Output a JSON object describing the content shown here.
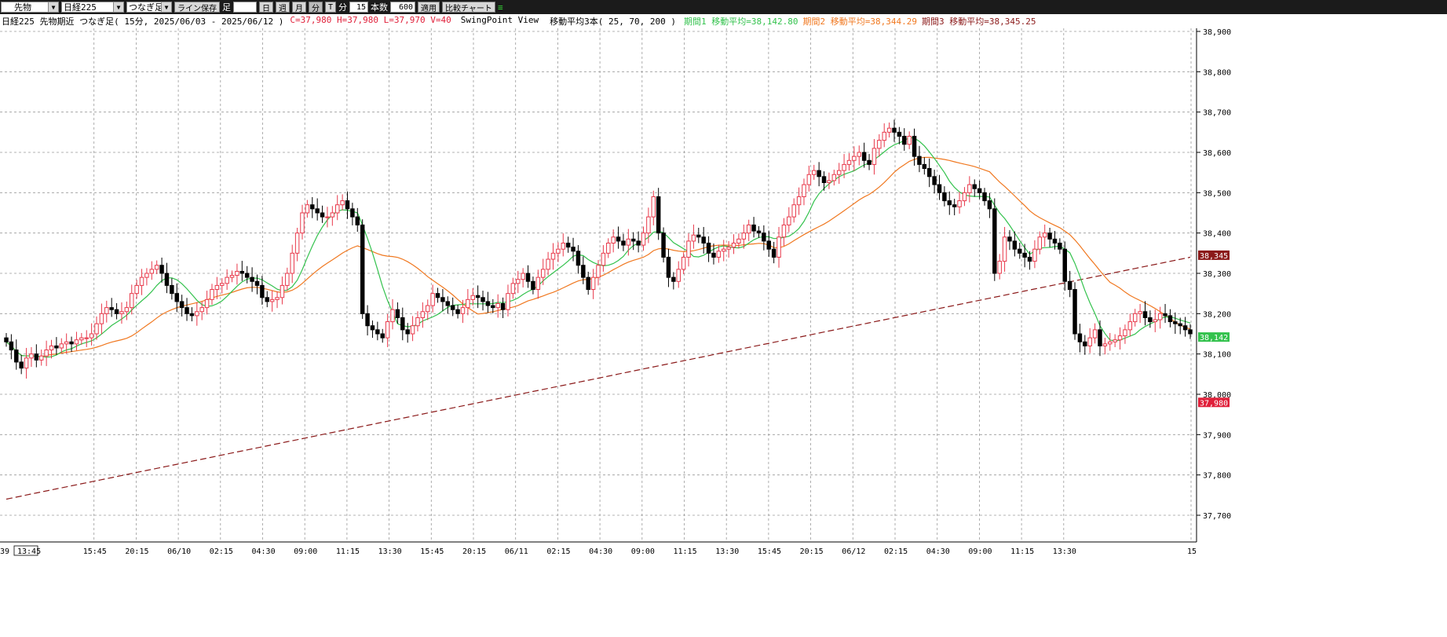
{
  "toolbar": {
    "market_select": "先物",
    "symbol_select": "日経225",
    "series_select": "つなぎ足",
    "save_line_button": "ライン保存",
    "foot_label": "足",
    "foot_value": "",
    "day_button": "日",
    "week_button": "週",
    "month_button": "月",
    "minute_button": "分",
    "tick_button": "T",
    "minute_label": "分",
    "interval_value": "15",
    "count_label": "本数",
    "count_value": "600",
    "apply_button": "適用",
    "compare_button": "比較チャート"
  },
  "info": {
    "title": "日経225 先物期近 つなぎ足( 15分, 2025/06/03 - 2025/06/12 )",
    "ohlc": "C=37,980 H=37,980 L=37,970 V=40",
    "view": "SwingPoint View",
    "ma_label": "移動平均3本( 25, 70, 200 )",
    "ma1": "期間1 移動平均=38,142.80",
    "ma2": "期間2 移動平均=38,344.29",
    "ma3": "期間3 移動平均=38,345.25"
  },
  "colors": {
    "up": "#e8384a",
    "down": "#000000",
    "ma1": "#33c24d",
    "ma2": "#f07820",
    "ma3": "#8b1a1a",
    "label": "#e0203a",
    "grid": "#9a9a9a"
  },
  "chart_data": {
    "type": "candlestick",
    "y_range": [
      37650,
      38950
    ],
    "y_ticks": [
      "38,900",
      "38,800",
      "38,700",
      "38,600",
      "38,500",
      "38,400",
      "38,300",
      "38,200",
      "38,100",
      "38,000",
      "37,900",
      "37,800",
      "37,700"
    ],
    "x_ticks": [
      "13:45",
      "15:45",
      "20:15",
      "06/10",
      "02:15",
      "04:30",
      "09:00",
      "11:15",
      "13:30",
      "15:45",
      "20:15",
      "06/11",
      "02:15",
      "04:30",
      "09:00",
      "11:15",
      "13:30",
      "15:45",
      "20:15",
      "06/12",
      "02:15",
      "04:30",
      "09:00",
      "11:15",
      "13:30",
      "15"
    ],
    "x_left_partial": "39",
    "price_tags": [
      {
        "text": "38,345.",
        "value": 38345,
        "color": "#8b1a1a"
      },
      {
        "text": "38,142.",
        "value": 38142,
        "color": "#33c24d"
      },
      {
        "text": "37,980",
        "value": 37980,
        "color": "#e0203a"
      }
    ],
    "closes": [
      38130,
      38110,
      38080,
      38065,
      38090,
      38100,
      38085,
      38095,
      38110,
      38120,
      38115,
      38125,
      38130,
      38125,
      38135,
      38140,
      38140,
      38150,
      38175,
      38200,
      38215,
      38210,
      38200,
      38205,
      38215,
      38250,
      38270,
      38290,
      38300,
      38310,
      38320,
      38300,
      38270,
      38250,
      38230,
      38215,
      38200,
      38195,
      38205,
      38215,
      38235,
      38260,
      38270,
      38275,
      38290,
      38295,
      38305,
      38300,
      38290,
      38280,
      38270,
      38240,
      38230,
      38235,
      38240,
      38270,
      38300,
      38350,
      38400,
      38450,
      38470,
      38460,
      38450,
      38440,
      38440,
      38450,
      38470,
      38480,
      38460,
      38440,
      38420,
      38200,
      38170,
      38160,
      38150,
      38140,
      38180,
      38210,
      38190,
      38160,
      38150,
      38170,
      38190,
      38205,
      38220,
      38250,
      38240,
      38230,
      38220,
      38210,
      38200,
      38215,
      38235,
      38245,
      38240,
      38230,
      38220,
      38215,
      38225,
      38210,
      38250,
      38275,
      38285,
      38300,
      38280,
      38260,
      38290,
      38310,
      38335,
      38350,
      38360,
      38375,
      38365,
      38355,
      38320,
      38290,
      38260,
      38290,
      38320,
      38350,
      38375,
      38390,
      38380,
      38370,
      38385,
      38380,
      38370,
      38400,
      38440,
      38490,
      38400,
      38340,
      38290,
      38280,
      38310,
      38340,
      38380,
      38395,
      38390,
      38375,
      38350,
      38340,
      38355,
      38360,
      38365,
      38375,
      38385,
      38400,
      38420,
      38405,
      38400,
      38380,
      38360,
      38340,
      38390,
      38420,
      38440,
      38470,
      38490,
      38520,
      38545,
      38555,
      38540,
      38525,
      38530,
      38545,
      38555,
      38570,
      38580,
      38590,
      38600,
      38580,
      38570,
      38610,
      38630,
      38650,
      38660,
      38650,
      38640,
      38620,
      38640,
      38590,
      38570,
      38560,
      38540,
      38520,
      38500,
      38480,
      38470,
      38465,
      38480,
      38500,
      38520,
      38510,
      38500,
      38480,
      38460,
      38300,
      38330,
      38390,
      38380,
      38360,
      38350,
      38340,
      38330,
      38360,
      38390,
      38400,
      38385,
      38375,
      38360,
      38280,
      38260,
      38150,
      38130,
      38120,
      38140,
      38160,
      38120,
      38125,
      38130,
      38135,
      38145,
      38160,
      38180,
      38200,
      38205,
      38190,
      38180,
      38185,
      38200,
      38195,
      38180,
      38175,
      38170,
      38160,
      38150
    ]
  }
}
